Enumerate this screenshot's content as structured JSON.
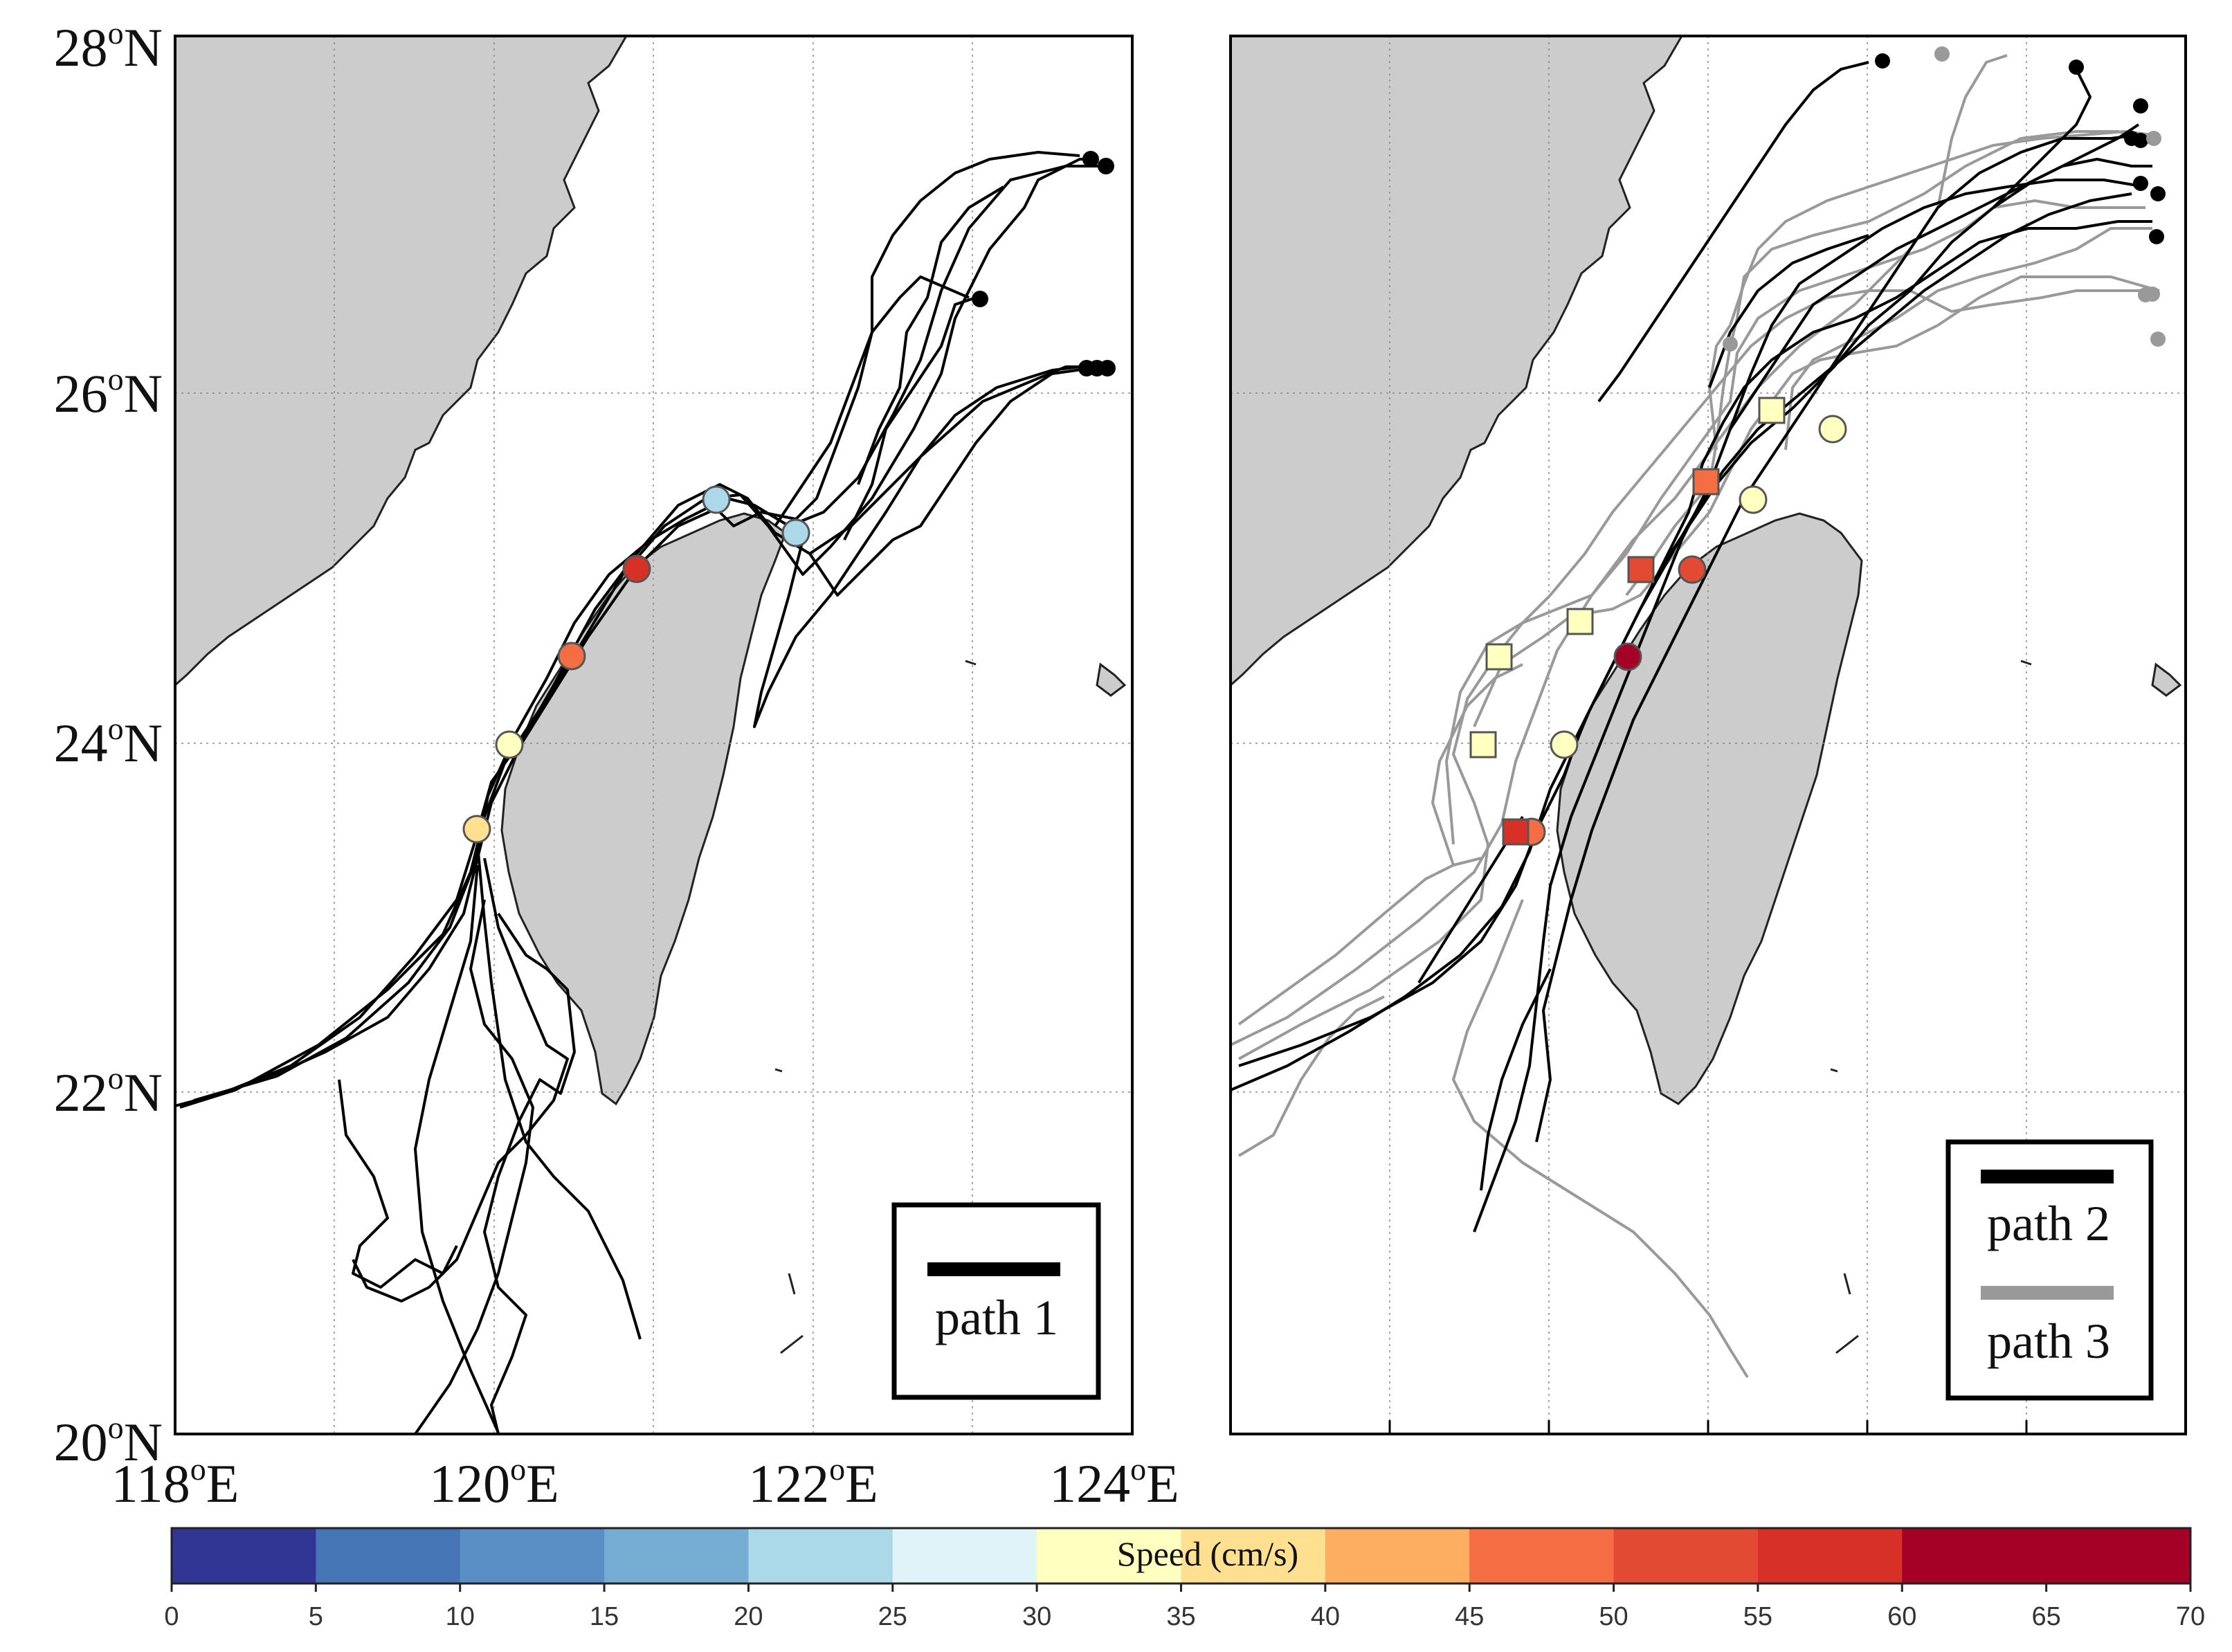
{
  "panels": [
    {
      "id": "left",
      "legend": [
        {
          "label": "path 1",
          "color": "#000000"
        }
      ]
    },
    {
      "id": "right",
      "legend": [
        {
          "label": "path 2",
          "color": "#000000"
        },
        {
          "label": "path 3",
          "color": "#999999"
        }
      ]
    }
  ],
  "lat_ticks": [
    {
      "label": "28",
      "sup": "o",
      "suffix": "N"
    },
    {
      "label": "26",
      "sup": "o",
      "suffix": "N"
    },
    {
      "label": "24",
      "sup": "o",
      "suffix": "N"
    },
    {
      "label": "22",
      "sup": "o",
      "suffix": "N"
    },
    {
      "label": "20",
      "sup": "o",
      "suffix": "N"
    }
  ],
  "lon_ticks": [
    {
      "label": "118",
      "sup": "o",
      "suffix": "E"
    },
    {
      "label": "120",
      "sup": "o",
      "suffix": "E"
    },
    {
      "label": "122",
      "sup": "o",
      "suffix": "E"
    },
    {
      "label": "124",
      "sup": "o",
      "suffix": "E"
    }
  ],
  "colorbar": {
    "label": "Speed (cm/s)",
    "ticks": [
      "0",
      "5",
      "10",
      "15",
      "20",
      "25",
      "30",
      "35",
      "40",
      "45",
      "50",
      "55",
      "60",
      "65",
      "70"
    ],
    "colors": [
      "#313695",
      "#4575b4",
      "#5a8fc5",
      "#74add1",
      "#abd9e9",
      "#e0f3f8",
      "#ffffbf",
      "#fee090",
      "#fdae61",
      "#f46d43",
      "#e34a33",
      "#d73027",
      "#a50026",
      "#a50026"
    ]
  },
  "colors": {
    "land": "#cccccc",
    "path1": "#000000",
    "path2": "#000000",
    "path3": "#999999"
  }
}
